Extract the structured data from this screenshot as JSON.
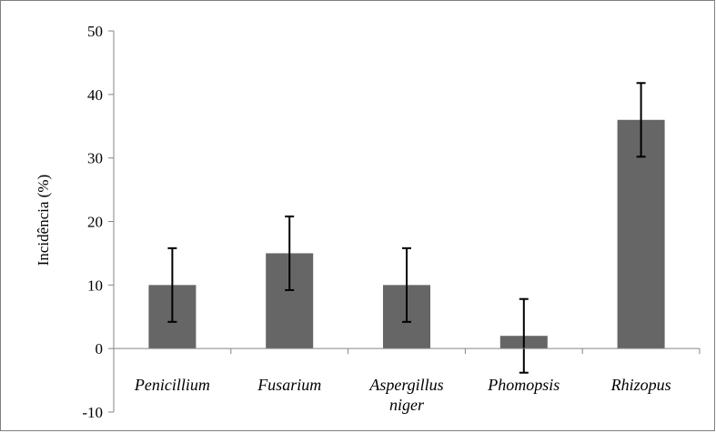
{
  "chart_data": {
    "type": "bar",
    "title": "",
    "xlabel": "",
    "ylabel": "Incidência (%)",
    "ylim": [
      -10,
      50
    ],
    "yticks": [
      -10,
      0,
      10,
      20,
      30,
      40,
      50
    ],
    "grid": false,
    "categories": [
      [
        "Penicillium"
      ],
      [
        "Fusarium"
      ],
      [
        "Aspergillus",
        "niger"
      ],
      [
        "Phomopsis"
      ],
      [
        "Rhizopus"
      ]
    ],
    "series": [
      {
        "values": [
          10,
          15,
          10,
          2,
          36
        ],
        "error": [
          5.8,
          5.8,
          5.8,
          5.8,
          5.8
        ]
      }
    ],
    "colors": {
      "bar": "#666666",
      "axis": "#868686",
      "error_bar": "#000000"
    }
  }
}
